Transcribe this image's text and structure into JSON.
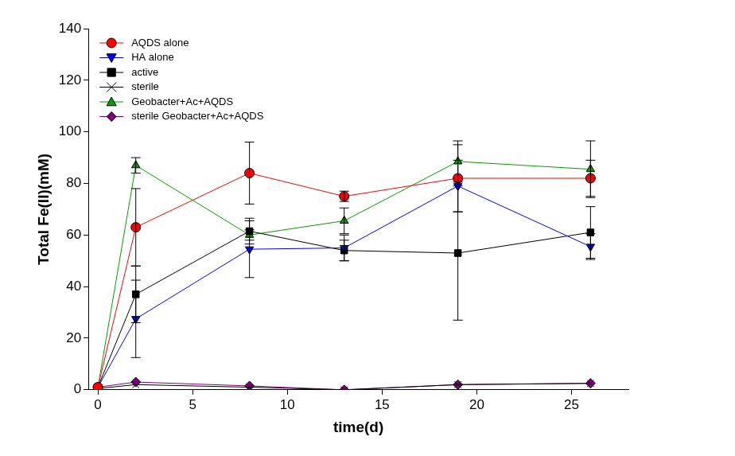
{
  "chart_data": {
    "type": "line",
    "x_label": "time(d)",
    "y_label": "Total Fe(II)(mM)",
    "x": [
      0,
      2,
      8,
      13,
      19,
      26
    ],
    "xlim": [
      -0.5,
      28
    ],
    "xticks": [
      0,
      5,
      10,
      15,
      20,
      25
    ],
    "ylim": [
      0,
      140
    ],
    "yticks": [
      0,
      20,
      40,
      60,
      80,
      100,
      120,
      140
    ],
    "grid": false,
    "legend": "upper left",
    "series": [
      {
        "name": "AQDS alone",
        "color": "#ff0000",
        "marker": "circle",
        "line_style": "solid",
        "values": [
          1,
          63,
          84,
          75,
          82,
          82
        ],
        "errors": [
          0,
          15,
          12,
          2,
          13,
          7
        ]
      },
      {
        "name": "HA alone",
        "color": "#0000ff",
        "marker": "triangle-down",
        "line_style": "solid",
        "values": [
          1,
          27.5,
          54.5,
          55,
          79,
          55.5
        ],
        "errors": [
          0,
          15,
          11,
          5,
          10,
          5
        ]
      },
      {
        "name": "active",
        "color": "#000000",
        "marker": "square",
        "line_style": "solid",
        "values": [
          1,
          37,
          61.5,
          54,
          53,
          61
        ],
        "errors": [
          0,
          11,
          5,
          4,
          26,
          10
        ]
      },
      {
        "name": "sterile",
        "color": "#000000",
        "marker": "x",
        "line_style": "solid",
        "values": [
          0.5,
          2,
          1,
          0,
          2,
          2.5
        ],
        "errors": [
          0,
          0,
          0,
          0,
          0,
          0
        ]
      },
      {
        "name": "Geobacter+Ac+AQDS",
        "color": "#00a000",
        "marker": "triangle-up",
        "line_style": "solid",
        "values": [
          1,
          87,
          60,
          65.5,
          88.5,
          85.5
        ],
        "errors": [
          0,
          3,
          2,
          5,
          8,
          11
        ]
      },
      {
        "name": "sterile Geobacter+Ac+AQDS",
        "color": "#800080",
        "marker": "diamond",
        "line_style": "solid",
        "values": [
          1,
          3,
          1.5,
          0,
          2,
          2.5
        ],
        "errors": [
          0,
          0,
          0,
          0,
          0,
          0
        ]
      }
    ]
  }
}
